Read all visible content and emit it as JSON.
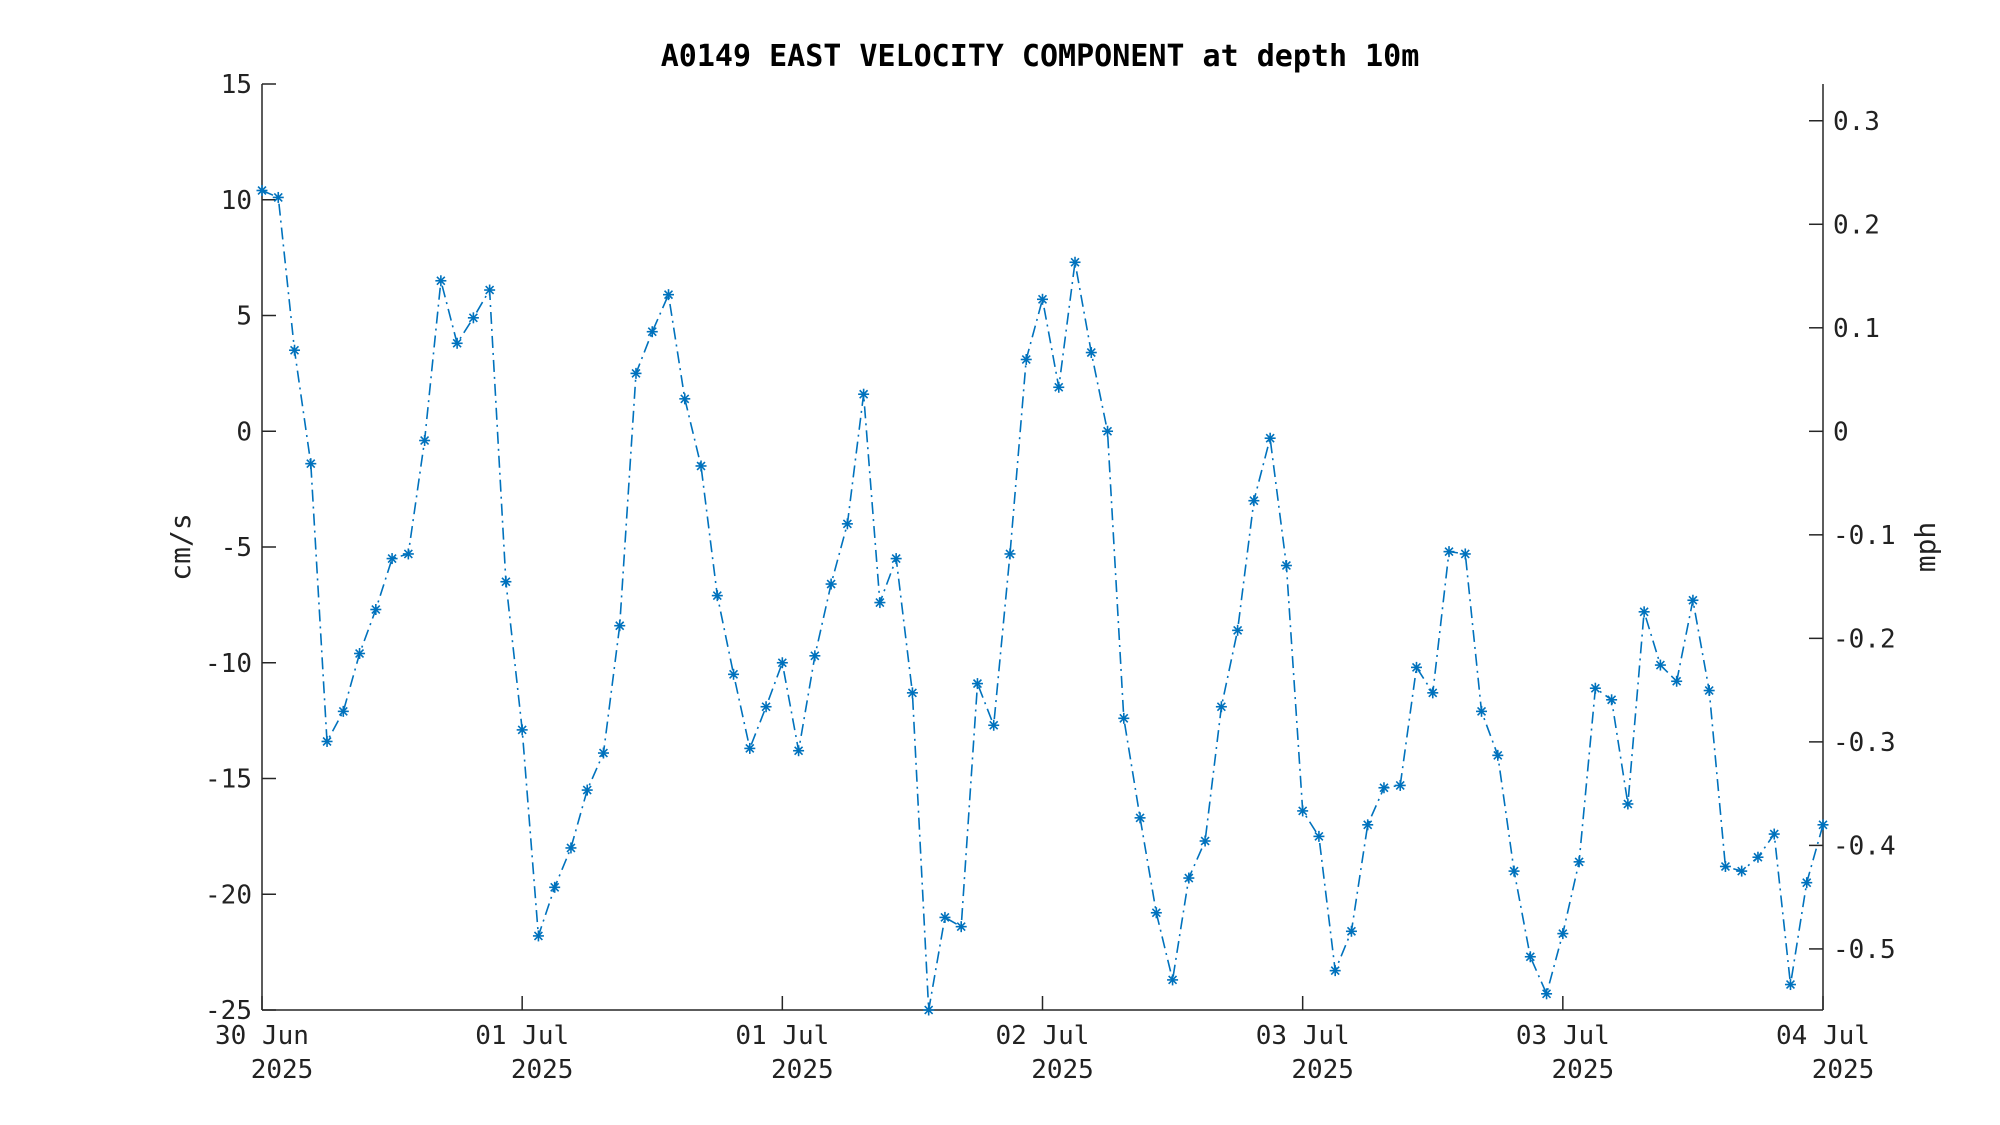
{
  "chart_data": {
    "type": "line",
    "title": "A0149 EAST VELOCITY COMPONENT at depth 10m",
    "ylabel": "cm/s",
    "ylabel_right": "mph",
    "ylim": [
      -25,
      15
    ],
    "yticks": [
      15,
      10,
      5,
      0,
      -5,
      -10,
      -15,
      -20,
      -25
    ],
    "y2lim": [
      -0.559,
      0.3355
    ],
    "y2ticks": [
      0.3,
      0.2,
      0.1,
      0,
      -0.1,
      -0.2,
      -0.3,
      -0.4,
      -0.5
    ],
    "y2tick_labels": [
      "0.3",
      "0.2",
      "0.1",
      "0",
      "-0.1",
      "-0.2",
      "-0.3",
      "-0.4",
      "-0.5"
    ],
    "xlim": [
      "2025-06-30 00:00",
      "2025-07-04 00:00"
    ],
    "xticks": [
      {
        "x": "2025-06-30 00:00",
        "line1": "30 Jun",
        "line2": "2025"
      },
      {
        "x": "2025-06-30 16:00",
        "line1": "01 Jul",
        "line2": "2025"
      },
      {
        "x": "2025-07-01 08:00",
        "line1": "01 Jul",
        "line2": "2025"
      },
      {
        "x": "2025-07-02 00:00",
        "line1": "02 Jul",
        "line2": "2025"
      },
      {
        "x": "2025-07-02 16:00",
        "line1": "03 Jul",
        "line2": "2025"
      },
      {
        "x": "2025-07-03 08:00",
        "line1": "03 Jul",
        "line2": "2025"
      },
      {
        "x": "2025-07-04 00:00",
        "line1": "04 Jul",
        "line2": "2025"
      }
    ],
    "grid": false,
    "series": [
      {
        "color": "#0072BD",
        "marker": "asterisk",
        "linestyle": "dash-dot",
        "x": [
          "2025-06-30 00:00",
          "2025-06-30 01:00",
          "2025-06-30 02:00",
          "2025-06-30 03:00",
          "2025-06-30 04:00",
          "2025-06-30 05:00",
          "2025-06-30 06:00",
          "2025-06-30 07:00",
          "2025-06-30 08:00",
          "2025-06-30 09:00",
          "2025-06-30 10:00",
          "2025-06-30 11:00",
          "2025-06-30 12:00",
          "2025-06-30 13:00",
          "2025-06-30 14:00",
          "2025-06-30 15:00",
          "2025-06-30 16:00",
          "2025-06-30 17:00",
          "2025-06-30 18:00",
          "2025-06-30 19:00",
          "2025-06-30 20:00",
          "2025-06-30 21:00",
          "2025-06-30 22:00",
          "2025-06-30 23:00",
          "2025-07-01 00:00",
          "2025-07-01 01:00",
          "2025-07-01 02:00",
          "2025-07-01 03:00",
          "2025-07-01 04:00",
          "2025-07-01 05:00",
          "2025-07-01 06:00",
          "2025-07-01 07:00",
          "2025-07-01 08:00",
          "2025-07-01 09:00",
          "2025-07-01 10:00",
          "2025-07-01 11:00",
          "2025-07-01 12:00",
          "2025-07-01 13:00",
          "2025-07-01 14:00",
          "2025-07-01 15:00",
          "2025-07-01 16:00",
          "2025-07-01 17:00",
          "2025-07-01 18:00",
          "2025-07-01 19:00",
          "2025-07-01 20:00",
          "2025-07-01 21:00",
          "2025-07-01 22:00",
          "2025-07-01 23:00",
          "2025-07-02 00:00",
          "2025-07-02 01:00",
          "2025-07-02 02:00",
          "2025-07-02 03:00",
          "2025-07-02 04:00",
          "2025-07-02 05:00",
          "2025-07-02 06:00",
          "2025-07-02 07:00",
          "2025-07-02 08:00",
          "2025-07-02 09:00",
          "2025-07-02 10:00",
          "2025-07-02 11:00",
          "2025-07-02 12:00",
          "2025-07-02 13:00",
          "2025-07-02 14:00",
          "2025-07-02 15:00",
          "2025-07-02 16:00",
          "2025-07-02 17:00",
          "2025-07-02 18:00",
          "2025-07-02 19:00",
          "2025-07-02 20:00",
          "2025-07-02 21:00",
          "2025-07-02 22:00",
          "2025-07-02 23:00",
          "2025-07-03 00:00",
          "2025-07-03 01:00",
          "2025-07-03 02:00",
          "2025-07-03 03:00",
          "2025-07-03 04:00",
          "2025-07-03 05:00",
          "2025-07-03 06:00",
          "2025-07-03 07:00",
          "2025-07-03 08:00",
          "2025-07-03 09:00",
          "2025-07-03 10:00",
          "2025-07-03 11:00",
          "2025-07-03 12:00",
          "2025-07-03 13:00",
          "2025-07-03 14:00",
          "2025-07-03 15:00",
          "2025-07-03 16:00",
          "2025-07-03 17:00",
          "2025-07-03 18:00",
          "2025-07-03 19:00",
          "2025-07-03 20:00",
          "2025-07-03 21:00",
          "2025-07-03 22:00",
          "2025-07-03 23:00",
          "2025-07-04 00:00"
        ],
        "y": [
          10.4,
          10.1,
          3.5,
          -1.4,
          -13.4,
          -12.1,
          -9.6,
          -7.7,
          -5.5,
          -5.3,
          -0.4,
          6.5,
          3.8,
          4.9,
          6.1,
          -6.5,
          -12.9,
          -21.8,
          -19.7,
          -18.0,
          -15.5,
          -13.9,
          -8.4,
          2.5,
          4.3,
          5.9,
          1.4,
          -1.5,
          -7.1,
          -10.5,
          -13.7,
          -11.9,
          -10.0,
          -13.8,
          -9.7,
          -6.6,
          -4.0,
          1.6,
          -7.4,
          -5.5,
          -11.3,
          -25.0,
          -21.0,
          -21.4,
          -10.9,
          -12.7,
          -5.3,
          3.1,
          5.7,
          1.9,
          7.3,
          3.4,
          0.0,
          -12.4,
          -16.7,
          -20.8,
          -23.7,
          -19.3,
          -17.7,
          -11.9,
          -8.6,
          -3.0,
          -0.3,
          -5.8,
          -16.4,
          -17.5,
          -23.3,
          -21.6,
          -17.0,
          -15.4,
          -15.3,
          -10.2,
          -11.3,
          -5.2,
          -5.3,
          -12.1,
          -14.0,
          -19.0,
          -22.7,
          -24.3,
          -21.7,
          -18.6,
          -11.1,
          -11.6,
          -16.1,
          -7.8,
          -10.1,
          -10.8,
          -7.3,
          -11.2,
          -18.8,
          -19.0,
          -18.4,
          -17.4,
          -23.9,
          -19.5,
          -17.0
        ]
      }
    ]
  }
}
